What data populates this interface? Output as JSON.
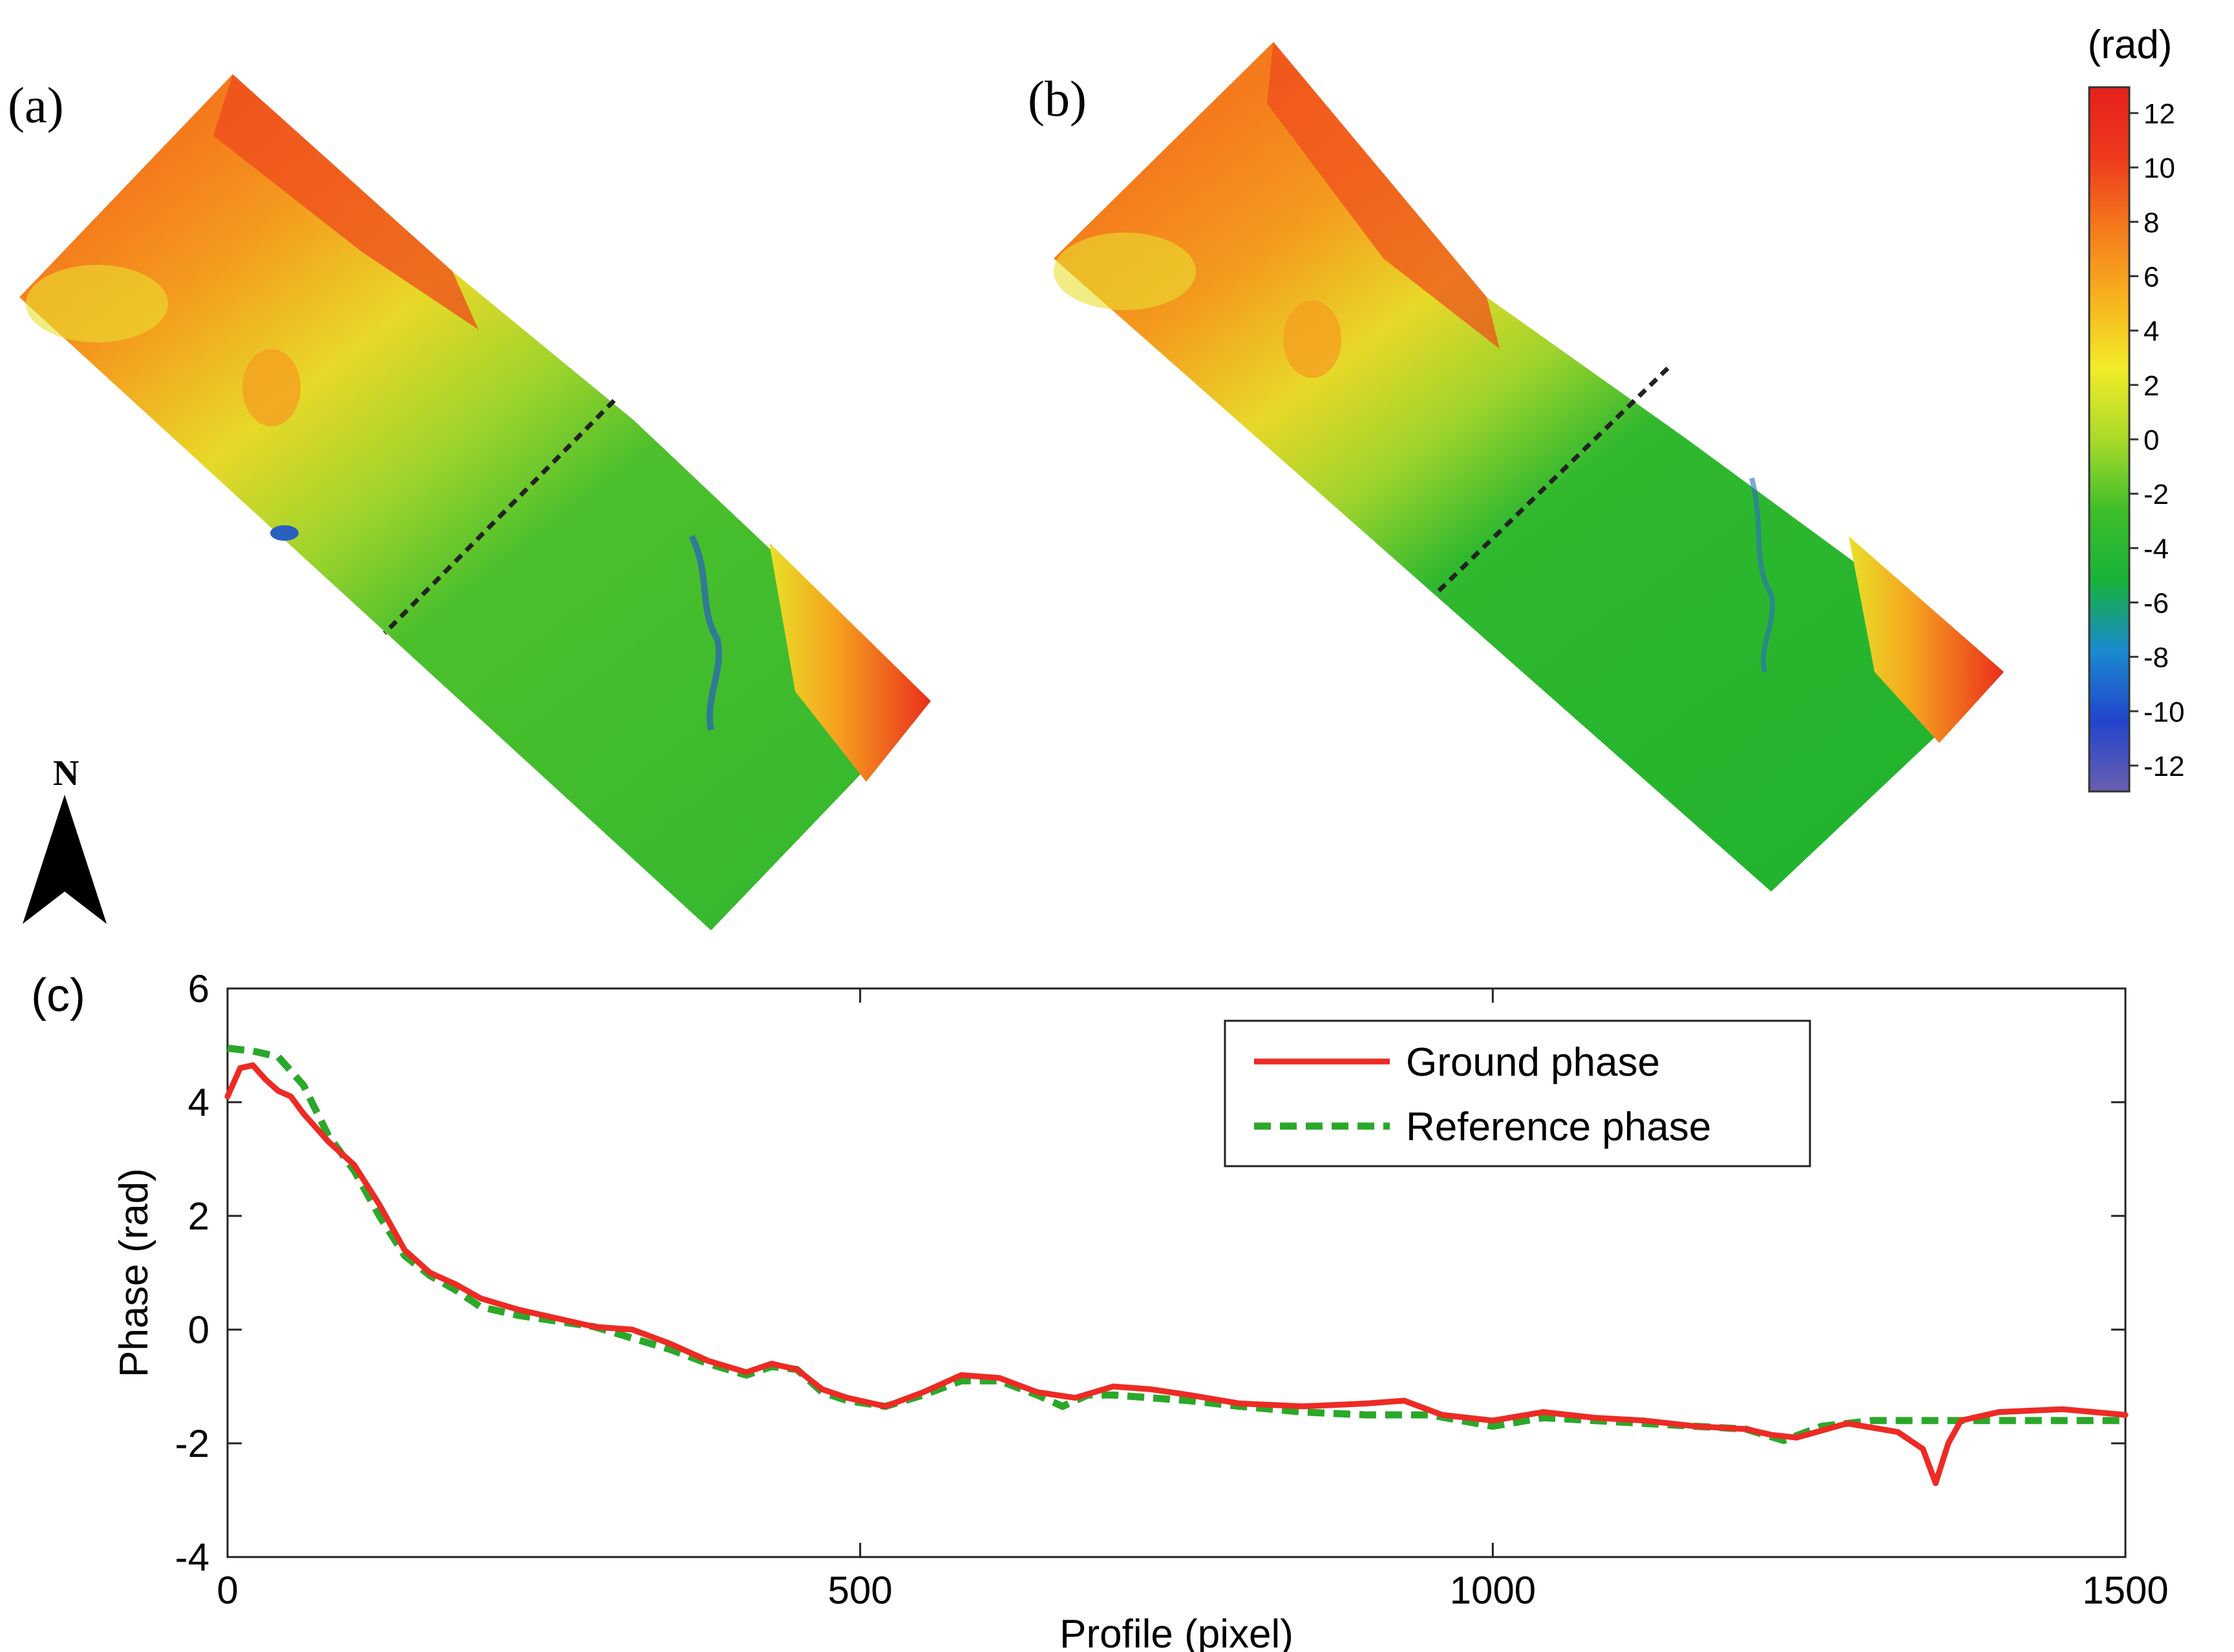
{
  "panels": {
    "a": {
      "label": "(a)"
    },
    "b": {
      "label": "(b)"
    },
    "c": {
      "label": "(c)"
    }
  },
  "north_arrow": {
    "letter": "N",
    "icon": "north-arrow-icon"
  },
  "colorbar": {
    "unit_label": "(rad)",
    "ticks": [
      "12",
      "10",
      "8",
      "6",
      "4",
      "2",
      "0",
      "-2",
      "-4",
      "-6",
      "-8",
      "-10",
      "-12"
    ],
    "range": [
      -12,
      12
    ],
    "colors": [
      "#6a5fb0",
      "#2244cc",
      "#1a8ad0",
      "#18b23a",
      "#3fbe2a",
      "#a9da2a",
      "#f2ec28",
      "#f7b21e",
      "#f47a1c",
      "#ee3a1c",
      "#e6201c"
    ]
  },
  "chart_data": {
    "type": "line",
    "title": "",
    "xlabel": "Profile (pixel)",
    "ylabel": "Phase (rad)",
    "xlim": [
      0,
      1500
    ],
    "ylim": [
      -4,
      6
    ],
    "xticks": [
      0,
      500,
      1000,
      1500
    ],
    "yticks": [
      -4,
      -2,
      0,
      2,
      4,
      6
    ],
    "legend_position": "top-right",
    "series": [
      {
        "name": "Ground phase",
        "color": "#ee2a24",
        "style": "solid",
        "x": [
          0,
          10,
          20,
          30,
          40,
          50,
          60,
          80,
          100,
          120,
          140,
          160,
          180,
          200,
          230,
          260,
          290,
          320,
          350,
          380,
          410,
          430,
          450,
          470,
          490,
          520,
          550,
          580,
          610,
          640,
          670,
          700,
          730,
          760,
          800,
          850,
          900,
          930,
          960,
          1000,
          1040,
          1080,
          1120,
          1160,
          1200,
          1220,
          1240,
          1280,
          1320,
          1340,
          1350,
          1360,
          1370,
          1400,
          1450,
          1500
        ],
        "y": [
          4.1,
          4.6,
          4.65,
          4.4,
          4.2,
          4.1,
          3.8,
          3.3,
          2.9,
          2.2,
          1.4,
          1.0,
          0.8,
          0.55,
          0.35,
          0.2,
          0.05,
          0.0,
          -0.25,
          -0.55,
          -0.75,
          -0.6,
          -0.7,
          -1.05,
          -1.2,
          -1.35,
          -1.1,
          -0.8,
          -0.85,
          -1.1,
          -1.2,
          -1.0,
          -1.05,
          -1.15,
          -1.3,
          -1.35,
          -1.3,
          -1.25,
          -1.5,
          -1.6,
          -1.45,
          -1.55,
          -1.6,
          -1.7,
          -1.75,
          -1.85,
          -1.9,
          -1.65,
          -1.8,
          -2.1,
          -2.7,
          -2.0,
          -1.6,
          -1.45,
          -1.4,
          -1.5
        ]
      },
      {
        "name": "Reference phase",
        "color": "#2aa82a",
        "style": "dashed",
        "x": [
          0,
          20,
          40,
          60,
          80,
          100,
          120,
          140,
          160,
          180,
          200,
          230,
          260,
          290,
          320,
          350,
          380,
          410,
          430,
          450,
          470,
          490,
          520,
          550,
          580,
          610,
          640,
          660,
          680,
          700,
          730,
          760,
          800,
          850,
          900,
          950,
          1000,
          1040,
          1080,
          1120,
          1160,
          1200,
          1230,
          1260,
          1300,
          1350,
          1400,
          1450,
          1500
        ],
        "y": [
          4.95,
          4.9,
          4.8,
          4.3,
          3.4,
          2.8,
          2.0,
          1.3,
          0.95,
          0.7,
          0.4,
          0.25,
          0.15,
          0.05,
          -0.15,
          -0.35,
          -0.6,
          -0.8,
          -0.65,
          -0.7,
          -1.1,
          -1.25,
          -1.35,
          -1.15,
          -0.9,
          -0.9,
          -1.15,
          -1.35,
          -1.15,
          -1.15,
          -1.2,
          -1.25,
          -1.35,
          -1.45,
          -1.5,
          -1.5,
          -1.7,
          -1.55,
          -1.6,
          -1.65,
          -1.7,
          -1.75,
          -1.95,
          -1.7,
          -1.6,
          -1.6,
          -1.6,
          -1.6,
          -1.6
        ]
      }
    ]
  }
}
